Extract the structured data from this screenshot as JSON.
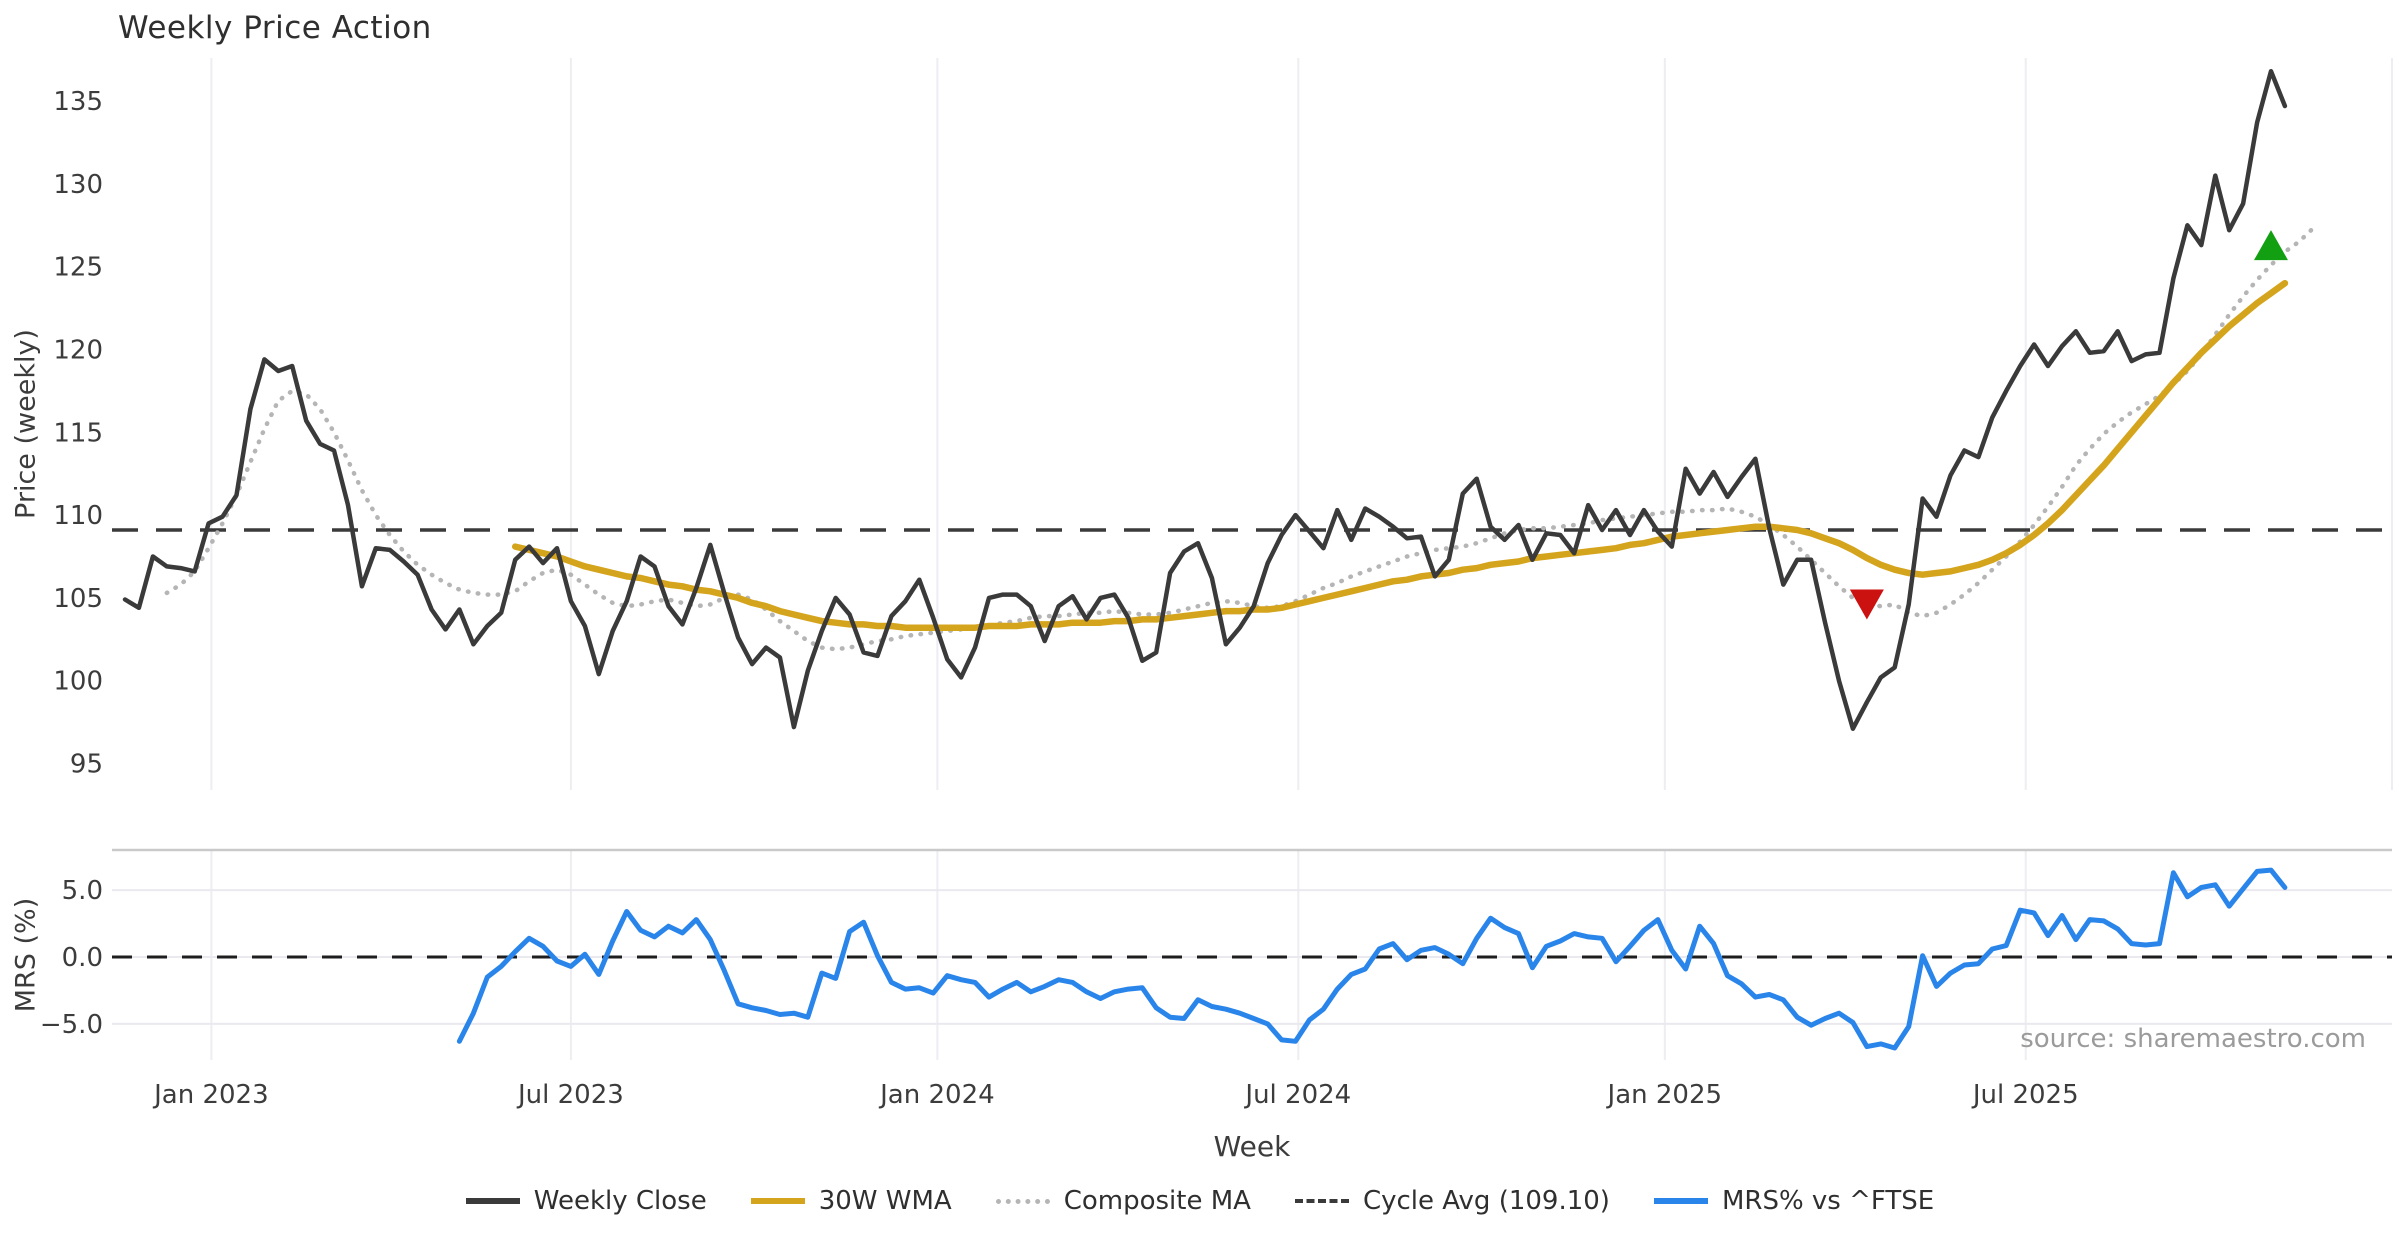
{
  "header": {
    "title": "Weekly Price Action"
  },
  "source_note": "source: sharemaestro.com",
  "colors": {
    "weekly_close": "#3a3a3a",
    "wma": "#d5a41d",
    "composite": "#b5b5b5",
    "cycle_avg": "#3a3a3a",
    "mrs": "#2a85ea",
    "sell_marker": "#cc1111",
    "buy_marker": "#12a012",
    "gridline": "#ededf2",
    "panel_spine": "#c9c9c9",
    "tick_text": "#3c3c3c"
  },
  "chart_data": {
    "type": "line",
    "title": "Weekly Price Action",
    "xlabel": "Week",
    "x_axis": {
      "tick_labels": [
        "Jan 2023",
        "Jul 2023",
        "Jan 2024",
        "Jul 2024",
        "Jan 2025",
        "Jul 2025"
      ],
      "tick_weeks": [
        6.2,
        32.0,
        58.3,
        84.2,
        110.5,
        136.4
      ],
      "total_weeks": 156
    },
    "panels": [
      {
        "name": "price",
        "ylabel": "Price (weekly)",
        "ylim": [
          93.4,
          137.6
        ],
        "ticks": [
          95,
          100,
          105,
          110,
          115,
          120,
          125,
          130,
          135
        ],
        "grid": "vertical-only"
      },
      {
        "name": "mrs",
        "ylabel": "MRS (%)",
        "ylim": [
          -7.7,
          8.0
        ],
        "ticks": [
          5.0,
          0.0,
          -5.0
        ],
        "tick_labels": [
          "5.0",
          "0.0",
          "−5.0"
        ],
        "grid": "both"
      }
    ],
    "series": [
      {
        "name": "Weekly Close",
        "panel": "price",
        "style": "solid",
        "color": "#3a3a3a",
        "start_week": 0,
        "values": [
          104.9,
          104.4,
          107.5,
          106.9,
          106.8,
          106.6,
          109.5,
          109.9,
          111.2,
          116.4,
          119.4,
          118.7,
          119.0,
          115.7,
          114.3,
          113.9,
          110.6,
          105.7,
          108.0,
          107.9,
          107.2,
          106.4,
          104.3,
          103.1,
          104.3,
          102.2,
          103.3,
          104.1,
          107.3,
          108.1,
          107.1,
          108.0,
          104.8,
          103.3,
          100.4,
          103.0,
          104.8,
          107.5,
          106.9,
          104.5,
          103.4,
          105.6,
          108.2,
          105.3,
          102.6,
          101.0,
          102.0,
          101.4,
          97.2,
          100.6,
          103.0,
          105.0,
          104.0,
          101.7,
          101.5,
          103.9,
          104.8,
          106.1,
          103.8,
          101.3,
          100.2,
          102.0,
          105.0,
          105.2,
          105.2,
          104.5,
          102.4,
          104.5,
          105.1,
          103.7,
          105.0,
          105.2,
          103.8,
          101.2,
          101.7,
          106.5,
          107.8,
          108.3,
          106.2,
          102.2,
          103.2,
          104.5,
          107.1,
          108.8,
          110.0,
          109.0,
          108.0,
          110.3,
          108.5,
          110.4,
          109.9,
          109.3,
          108.6,
          108.7,
          106.3,
          107.3,
          111.3,
          112.2,
          109.3,
          108.5,
          109.4,
          107.3,
          108.9,
          108.8,
          107.7,
          110.6,
          109.1,
          110.3,
          108.8,
          110.3,
          109.0,
          108.1,
          112.8,
          111.3,
          112.6,
          111.1,
          112.3,
          113.4,
          109.2,
          105.8,
          107.3,
          107.3,
          103.5,
          100.0,
          97.1,
          98.7,
          100.2,
          100.8,
          104.6,
          111.0,
          109.9,
          112.4,
          113.9,
          113.5,
          115.9,
          117.5,
          119.0,
          120.3,
          119.0,
          120.2,
          121.1,
          119.8,
          119.9,
          121.1,
          119.3,
          119.7,
          119.8,
          124.3,
          127.5,
          126.3,
          130.5,
          127.2,
          128.8,
          133.7,
          136.8,
          134.7
        ]
      },
      {
        "name": "30W WMA",
        "panel": "price",
        "style": "solid",
        "color": "#d5a41d",
        "start_week": 28,
        "values": [
          108.1,
          107.9,
          107.7,
          107.5,
          107.2,
          106.9,
          106.7,
          106.5,
          106.3,
          106.2,
          106.0,
          105.8,
          105.7,
          105.5,
          105.4,
          105.2,
          105.0,
          104.7,
          104.5,
          104.2,
          104.0,
          103.8,
          103.6,
          103.5,
          103.4,
          103.4,
          103.3,
          103.3,
          103.2,
          103.2,
          103.2,
          103.2,
          103.2,
          103.2,
          103.3,
          103.3,
          103.3,
          103.4,
          103.4,
          103.4,
          103.5,
          103.5,
          103.5,
          103.6,
          103.6,
          103.7,
          103.7,
          103.8,
          103.9,
          104.0,
          104.1,
          104.2,
          104.2,
          104.3,
          104.3,
          104.4,
          104.6,
          104.8,
          105.0,
          105.2,
          105.4,
          105.6,
          105.8,
          106.0,
          106.1,
          106.3,
          106.4,
          106.5,
          106.7,
          106.8,
          107.0,
          107.1,
          107.2,
          107.4,
          107.5,
          107.6,
          107.7,
          107.8,
          107.9,
          108.0,
          108.2,
          108.3,
          108.5,
          108.7,
          108.8,
          108.9,
          109.0,
          109.1,
          109.2,
          109.3,
          109.3,
          109.2,
          109.1,
          108.9,
          108.6,
          108.3,
          107.9,
          107.4,
          107.0,
          106.7,
          106.5,
          106.4,
          106.5,
          106.6,
          106.8,
          107.0,
          107.3,
          107.7,
          108.2,
          108.8,
          109.5,
          110.3,
          111.2,
          112.1,
          113.0,
          114.0,
          115.0,
          116.0,
          117.0,
          118.0,
          118.9,
          119.8,
          120.6,
          121.4,
          122.1,
          122.8,
          123.4,
          124.0
        ]
      },
      {
        "name": "Composite MA",
        "panel": "price",
        "style": "dotted",
        "color": "#b5b5b5",
        "start_week": 3,
        "values": [
          105.3,
          105.8,
          106.6,
          108.0,
          109.5,
          111.2,
          113.2,
          115.2,
          116.9,
          117.5,
          117.3,
          116.4,
          115.0,
          113.3,
          111.5,
          110.0,
          108.8,
          107.8,
          107.0,
          106.4,
          105.9,
          105.5,
          105.3,
          105.2,
          105.2,
          105.4,
          106.0,
          106.5,
          106.7,
          106.4,
          105.8,
          105.2,
          104.7,
          104.5,
          104.6,
          104.8,
          104.9,
          104.7,
          104.5,
          104.6,
          105.0,
          105.2,
          104.9,
          104.3,
          103.6,
          103.0,
          102.4,
          102.0,
          101.9,
          102.0,
          102.2,
          102.4,
          102.5,
          102.7,
          102.8,
          102.9,
          103.0,
          103.1,
          103.2,
          103.3,
          103.5,
          103.6,
          103.8,
          103.9,
          103.9,
          104.0,
          104.1,
          104.1,
          104.2,
          104.1,
          104.0,
          104.0,
          104.1,
          104.3,
          104.5,
          104.7,
          104.8,
          104.7,
          104.5,
          104.4,
          104.5,
          104.8,
          105.2,
          105.6,
          105.9,
          106.3,
          106.6,
          106.9,
          107.2,
          107.5,
          107.7,
          107.9,
          108.0,
          108.1,
          108.3,
          108.6,
          108.9,
          109.1,
          109.2,
          109.2,
          109.3,
          109.4,
          109.5,
          109.7,
          109.8,
          109.9,
          110.0,
          110.1,
          110.2,
          110.2,
          110.3,
          110.3,
          110.4,
          110.2,
          109.9,
          109.4,
          108.8,
          108.1,
          107.3,
          106.5,
          105.7,
          105.0,
          104.6,
          104.5,
          104.6,
          104.1,
          103.9,
          104.1,
          104.6,
          105.2,
          105.9,
          106.7,
          107.5,
          108.4,
          109.4,
          110.5,
          111.7,
          113.0,
          114.0,
          114.9,
          115.6,
          116.2,
          116.7,
          117.2,
          117.9,
          118.7,
          119.7,
          120.9,
          122.1,
          123.2,
          124.2,
          125.1,
          125.9,
          126.5,
          127.3
        ]
      },
      {
        "name": "Cycle Avg (109.10)",
        "panel": "price",
        "style": "dashed",
        "color": "#3a3a3a",
        "hline": 109.1
      },
      {
        "name": "MRS% vs ^FTSE",
        "panel": "mrs",
        "style": "solid",
        "color": "#2a85ea",
        "start_week": 24,
        "values": [
          -6.3,
          -4.2,
          -1.5,
          -0.7,
          0.4,
          1.4,
          0.8,
          -0.3,
          -0.7,
          0.2,
          -1.3,
          1.2,
          3.4,
          2.0,
          1.5,
          2.3,
          1.8,
          2.8,
          1.3,
          -1.0,
          -3.5,
          -3.8,
          -4.0,
          -4.3,
          -4.2,
          -4.5,
          -1.2,
          -1.6,
          1.9,
          2.6,
          0.1,
          -1.9,
          -2.4,
          -2.3,
          -2.7,
          -1.4,
          -1.7,
          -1.9,
          -3.0,
          -2.4,
          -1.9,
          -2.6,
          -2.2,
          -1.7,
          -1.9,
          -2.6,
          -3.1,
          -2.6,
          -2.4,
          -2.3,
          -3.8,
          -4.5,
          -4.6,
          -3.2,
          -3.7,
          -3.9,
          -4.2,
          -4.6,
          -5.0,
          -6.2,
          -6.3,
          -4.7,
          -3.9,
          -2.4,
          -1.3,
          -0.9,
          0.6,
          1.0,
          -0.2,
          0.5,
          0.7,
          0.2,
          -0.5,
          1.4,
          2.9,
          2.2,
          1.75,
          -0.8,
          0.8,
          1.2,
          1.75,
          1.5,
          1.4,
          -0.35,
          0.8,
          2.0,
          2.8,
          0.5,
          -0.9,
          2.3,
          1.0,
          -1.4,
          -2.0,
          -3.0,
          -2.8,
          -3.2,
          -4.5,
          -5.1,
          -4.6,
          -4.2,
          -4.9,
          -6.7,
          -6.5,
          -6.8,
          -5.2,
          0.1,
          -2.2,
          -1.2,
          -0.6,
          -0.5,
          0.6,
          0.85,
          3.5,
          3.3,
          1.6,
          3.1,
          1.3,
          2.8,
          2.7,
          2.1,
          1.0,
          0.9,
          1.0,
          6.3,
          4.5,
          5.2,
          5.4,
          3.8,
          5.1,
          6.4,
          6.5,
          5.2
        ]
      },
      {
        "name": "MRS zero line",
        "panel": "mrs",
        "style": "dashed",
        "color": "#1e1e1e",
        "hline": 0
      }
    ],
    "markers": [
      {
        "type": "sell-signal",
        "shape": "triangle-down",
        "color": "#cc1111",
        "week": 125,
        "price": 104.6
      },
      {
        "type": "buy-signal",
        "shape": "triangle-up",
        "color": "#12a012",
        "week": 154,
        "price": 126.3
      }
    ],
    "legend": [
      {
        "label": "Weekly Close",
        "style": "solid",
        "color": "#3a3a3a"
      },
      {
        "label": "30W WMA",
        "style": "solid",
        "color": "#d5a41d"
      },
      {
        "label": "Composite MA",
        "style": "dotted",
        "color": "#b5b5b5"
      },
      {
        "label": "Cycle Avg (109.10)",
        "style": "dashed",
        "color": "#3a3a3a"
      },
      {
        "label": "MRS% vs ^FTSE",
        "style": "solid",
        "color": "#2a85ea"
      }
    ]
  }
}
